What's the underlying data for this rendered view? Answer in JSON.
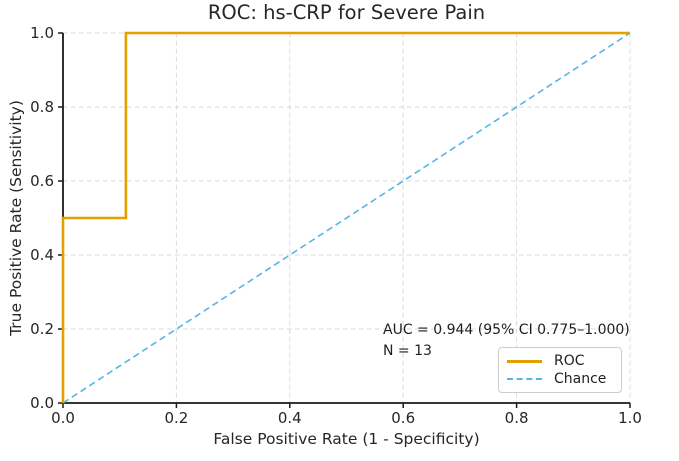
{
  "chart_data": {
    "type": "line",
    "title": "ROC: hs-CRP for Severe Pain",
    "xlabel": "False Positive Rate (1 - Specificity)",
    "ylabel": "True Positive Rate (Sensitivity)",
    "xlim": [
      0.0,
      1.0
    ],
    "ylim": [
      0.0,
      1.0
    ],
    "x_ticks": [
      0.0,
      0.2,
      0.4,
      0.6,
      0.8,
      1.0
    ],
    "x_tick_labels": [
      "0.0",
      "0.2",
      "0.4",
      "0.6",
      "0.8",
      "1.0"
    ],
    "y_ticks": [
      0.0,
      0.2,
      0.4,
      0.6,
      0.8,
      1.0
    ],
    "y_tick_labels": [
      "0.0",
      "0.2",
      "0.4",
      "0.6",
      "0.8",
      "1.0"
    ],
    "grid": true,
    "grid_color": "#d9d9d9",
    "axis_color": "#1a1a1a",
    "tick_label_color": "#262626",
    "legend_position": "lower right",
    "series": [
      {
        "name": "ROC",
        "color": "#E69F00",
        "style": "solid",
        "width": 2.6,
        "points": [
          [
            0.0,
            0.0
          ],
          [
            0.0,
            0.5
          ],
          [
            0.111,
            0.5
          ],
          [
            0.111,
            1.0
          ],
          [
            1.0,
            1.0
          ]
        ]
      },
      {
        "name": "Chance",
        "color": "#56B4E9",
        "style": "dashed",
        "width": 1.6,
        "points": [
          [
            0.0,
            0.0
          ],
          [
            1.0,
            1.0
          ]
        ]
      }
    ],
    "annotations": [
      {
        "text": "AUC = 0.944 (95% CI 0.775–1.000)"
      },
      {
        "text": "N = 13"
      }
    ],
    "stats": {
      "auc": 0.944,
      "ci_low": 0.775,
      "ci_high": 1.0,
      "n": 13
    }
  }
}
